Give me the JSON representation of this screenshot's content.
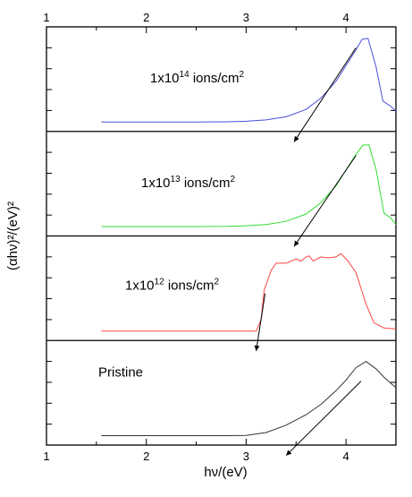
{
  "chart_data": {
    "type": "line",
    "xlabel": "hν/(eV)",
    "ylabel": "(αhν)²/(eV)²",
    "xlim": [
      1,
      4.5
    ],
    "x_ticks": [
      "1",
      "2",
      "3",
      "4"
    ],
    "x_tick_values": [
      1,
      2,
      3,
      4
    ],
    "grid": false,
    "panels": [
      {
        "name": "panel-1e14",
        "label_prefix": "1x10",
        "label_exp": "14",
        "label_suffix": " ions/cm",
        "label_unit_exp": "2",
        "color": "#4a4fd6",
        "ylim": [
          0,
          1
        ],
        "x": [
          1.55,
          2.0,
          2.5,
          2.8,
          3.0,
          3.2,
          3.4,
          3.6,
          3.75,
          3.9,
          4.0,
          4.1,
          4.16,
          4.22,
          4.3,
          4.37,
          4.45,
          4.5
        ],
        "y": [
          0.09,
          0.09,
          0.09,
          0.092,
          0.097,
          0.11,
          0.14,
          0.21,
          0.32,
          0.48,
          0.63,
          0.78,
          0.88,
          0.89,
          0.62,
          0.29,
          0.24,
          0.19
        ],
        "tangent": {
          "x": [
            4.1,
            3.48
          ],
          "y": [
            0.8,
            -0.1
          ]
        }
      },
      {
        "name": "panel-1e13",
        "label_prefix": "1x10",
        "label_exp": "13",
        "label_suffix": " ions/cm",
        "label_unit_exp": "2",
        "color": "#33dd33",
        "ylim": [
          0,
          1
        ],
        "x": [
          1.55,
          2.0,
          2.5,
          2.8,
          3.0,
          3.2,
          3.4,
          3.6,
          3.75,
          3.9,
          4.0,
          4.1,
          4.17,
          4.23,
          4.3,
          4.38,
          4.45,
          4.5
        ],
        "y": [
          0.09,
          0.09,
          0.09,
          0.092,
          0.098,
          0.11,
          0.14,
          0.21,
          0.32,
          0.48,
          0.63,
          0.78,
          0.87,
          0.87,
          0.64,
          0.22,
          0.17,
          0.11
        ],
        "tangent": {
          "x": [
            4.1,
            3.48
          ],
          "y": [
            0.77,
            -0.1
          ]
        }
      },
      {
        "name": "panel-1e12",
        "label_prefix": "1x10",
        "label_exp": "12",
        "label_suffix": " ions/cm",
        "label_unit_exp": "2",
        "color": "#ff4444",
        "ylim": [
          0,
          1
        ],
        "x": [
          1.55,
          2.0,
          2.5,
          3.0,
          3.1,
          3.15,
          3.18,
          3.25,
          3.3,
          3.4,
          3.5,
          3.55,
          3.6,
          3.63,
          3.67,
          3.75,
          3.82,
          3.9,
          3.95,
          4.02,
          4.1,
          4.2,
          4.28,
          4.38,
          4.5
        ],
        "y": [
          0.09,
          0.09,
          0.09,
          0.09,
          0.09,
          0.2,
          0.48,
          0.67,
          0.74,
          0.74,
          0.78,
          0.76,
          0.8,
          0.81,
          0.76,
          0.8,
          0.79,
          0.8,
          0.83,
          0.76,
          0.65,
          0.35,
          0.17,
          0.12,
          0.11
        ],
        "tangent": {
          "x": [
            3.19,
            3.1
          ],
          "y": [
            0.45,
            -0.1
          ]
        }
      },
      {
        "name": "panel-pristine",
        "label_text": "Pristine",
        "color": "#333333",
        "ylim": [
          0,
          1
        ],
        "x": [
          1.55,
          2.0,
          2.5,
          2.8,
          3.0,
          3.2,
          3.4,
          3.6,
          3.75,
          3.9,
          4.0,
          4.1,
          4.2,
          4.3,
          4.38,
          4.45,
          4.5
        ],
        "y": [
          0.09,
          0.09,
          0.09,
          0.09,
          0.092,
          0.12,
          0.19,
          0.29,
          0.39,
          0.52,
          0.62,
          0.74,
          0.8,
          0.73,
          0.65,
          0.59,
          0.55
        ],
        "tangent": {
          "x": [
            4.15,
            3.4
          ],
          "y": [
            0.61,
            -0.1
          ]
        }
      }
    ]
  }
}
